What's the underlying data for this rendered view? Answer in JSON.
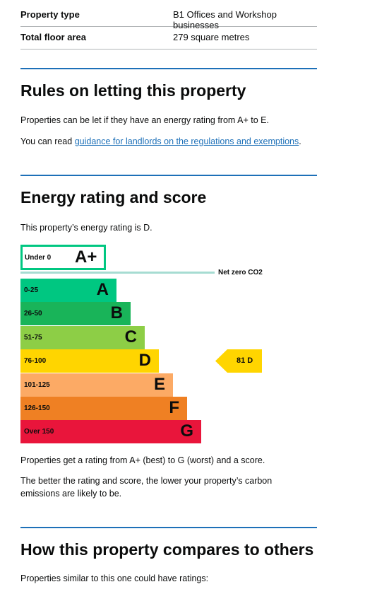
{
  "summary": [
    {
      "key": "Property type",
      "value": "B1 Offices and Workshop businesses"
    },
    {
      "key": "Total floor area",
      "value": "279 square metres"
    }
  ],
  "rules_section": {
    "heading": "Rules on letting this property",
    "para1": "Properties can be let if they have an energy rating from A+ to E.",
    "para2_prefix": "You can read ",
    "para2_link": "guidance for landlords on the regulations and exemptions",
    "para2_suffix": "."
  },
  "energy_section": {
    "heading": "Energy rating and score",
    "intro": "This property’s energy rating is D.",
    "para1": "Properties get a rating from A+ (best) to G (worst) and a score.",
    "para2": "The better the rating and score, the lower your property’s carbon emissions are likely to be."
  },
  "chart_data": {
    "type": "bar",
    "net_zero_label": "Net zero CO2",
    "bands": [
      {
        "letter": "A+",
        "range": "Under 0",
        "color": "#00c781",
        "outlined": true
      },
      {
        "letter": "A",
        "range": "0-25",
        "color": "#00c781"
      },
      {
        "letter": "B",
        "range": "26-50",
        "color": "#19b459"
      },
      {
        "letter": "C",
        "range": "51-75",
        "color": "#8dce46"
      },
      {
        "letter": "D",
        "range": "76-100",
        "color": "#ffd500"
      },
      {
        "letter": "E",
        "range": "101-125",
        "color": "#fcaa65"
      },
      {
        "letter": "F",
        "range": "126-150",
        "color": "#ef8023"
      },
      {
        "letter": "G",
        "range": "Over 150",
        "color": "#e9153b"
      }
    ],
    "current": {
      "score": 81,
      "letter": "D",
      "label": "81 D",
      "color": "#ffd500"
    }
  },
  "compare_section": {
    "heading": "How this property compares to others",
    "intro": "Properties similar to this one could have ratings:"
  }
}
